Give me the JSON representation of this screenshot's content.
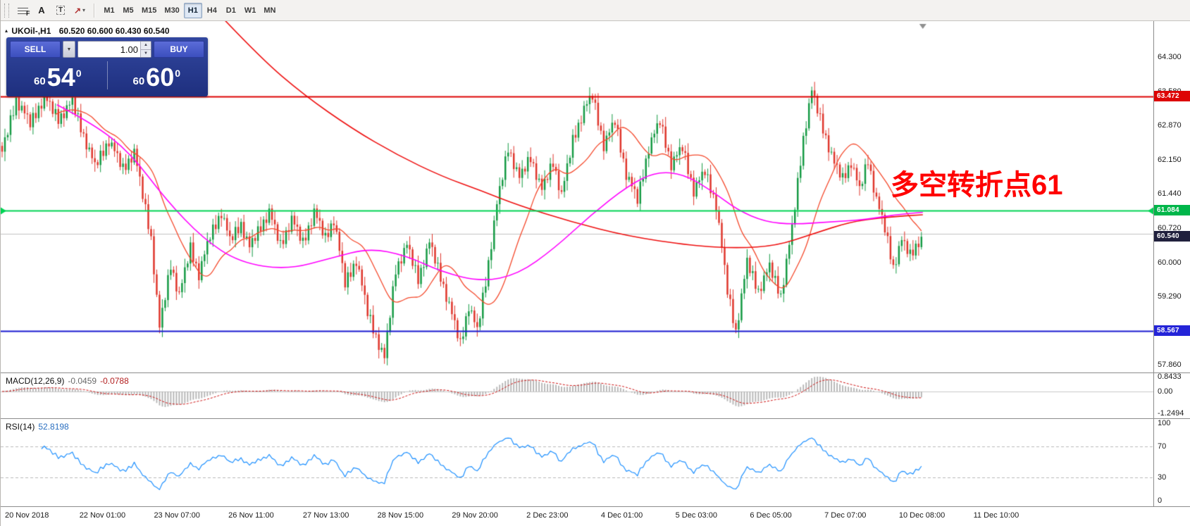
{
  "toolbar": {
    "tools": [
      {
        "name": "fibonacci-tool",
        "glyph": "F"
      },
      {
        "name": "text-tool",
        "glyph": "A"
      },
      {
        "name": "label-tool",
        "glyph": "T"
      },
      {
        "name": "arrows-tool",
        "glyph": "↗",
        "dropdown": "▾"
      }
    ],
    "timeframes": [
      "M1",
      "M5",
      "M15",
      "M30",
      "H1",
      "H4",
      "D1",
      "W1",
      "MN"
    ],
    "active_timeframe": "H1"
  },
  "chart": {
    "symbol": "UKOil-,H1",
    "ohlc": "60.520 60.600 60.430 60.540",
    "shift_marker": "▼"
  },
  "trade_panel": {
    "sell_label": "SELL",
    "buy_label": "BUY",
    "volume": "1.00",
    "dropdown_glyph": "▼",
    "spinner_up": "▲",
    "spinner_down": "▼",
    "sell_price": {
      "prefix": "60",
      "big": "54",
      "sup": "0"
    },
    "buy_price": {
      "prefix": "60",
      "big": "60",
      "sup": "0"
    }
  },
  "indicators": {
    "macd": {
      "name": "MACD(12,26,9)",
      "value_main": "-0.0459",
      "value_signal": "-0.0788"
    },
    "rsi": {
      "name": "RSI(14)",
      "value": "52.8198"
    }
  },
  "chart_data": {
    "type": "candlestick",
    "symbol": "UKOil-",
    "timeframe": "H1",
    "price_max": 65.05,
    "price_min": 57.7,
    "bars": 328,
    "bars_width_frac": 0.8,
    "label_first_bar": 4,
    "label_bar_step": 26.5,
    "up_color": "#149a43",
    "down_color": "#df352b",
    "x_labels": [
      "20 Nov 2018",
      "22 Nov 01:00",
      "23 Nov 07:00",
      "26 Nov 11:00",
      "27 Nov 13:00",
      "28 Nov 15:00",
      "29 Nov 20:00",
      "2 Dec 23:00",
      "4 Dec 01:00",
      "5 Dec 03:00",
      "6 Dec 05:00",
      "7 Dec 07:00",
      "10 Dec 08:00",
      "11 Dec 10:00"
    ],
    "y_ticks": [
      "64.300",
      "63.580",
      "62.870",
      "62.150",
      "61.440",
      "60.720",
      "60.000",
      "59.290",
      "58.570",
      "57.860"
    ],
    "path_anchors": [
      [
        0,
        62.3
      ],
      [
        5,
        63.4
      ],
      [
        10,
        62.9
      ],
      [
        15,
        63.45
      ],
      [
        20,
        63.0
      ],
      [
        25,
        63.35
      ],
      [
        29,
        62.65
      ],
      [
        33,
        62.0
      ],
      [
        38,
        62.55
      ],
      [
        43,
        61.95
      ],
      [
        47,
        62.3
      ],
      [
        50,
        61.4
      ],
      [
        53,
        60.5
      ],
      [
        56,
        58.62
      ],
      [
        60,
        59.95
      ],
      [
        63,
        59.3
      ],
      [
        67,
        60.3
      ],
      [
        70,
        59.75
      ],
      [
        74,
        60.55
      ],
      [
        78,
        61.05
      ],
      [
        81,
        60.45
      ],
      [
        85,
        60.8
      ],
      [
        88,
        60.3
      ],
      [
        92,
        60.75
      ],
      [
        95,
        61.05
      ],
      [
        99,
        60.35
      ],
      [
        103,
        60.9
      ],
      [
        107,
        60.4
      ],
      [
        111,
        61.05
      ],
      [
        115,
        60.5
      ],
      [
        118,
        60.9
      ],
      [
        122,
        59.55
      ],
      [
        126,
        60.05
      ],
      [
        130,
        58.95
      ],
      [
        133,
        58.45
      ],
      [
        136,
        57.98
      ],
      [
        140,
        59.85
      ],
      [
        144,
        60.35
      ],
      [
        148,
        59.65
      ],
      [
        152,
        60.4
      ],
      [
        156,
        59.7
      ],
      [
        160,
        58.9
      ],
      [
        163,
        58.28
      ],
      [
        166,
        59.1
      ],
      [
        169,
        58.55
      ],
      [
        172,
        59.6
      ],
      [
        176,
        61.2
      ],
      [
        180,
        62.4
      ],
      [
        184,
        61.75
      ],
      [
        188,
        62.2
      ],
      [
        192,
        61.5
      ],
      [
        196,
        62.1
      ],
      [
        199,
        61.4
      ],
      [
        203,
        62.55
      ],
      [
        207,
        63.2
      ],
      [
        210,
        63.48
      ],
      [
        214,
        62.45
      ],
      [
        218,
        62.95
      ],
      [
        222,
        61.85
      ],
      [
        226,
        61.3
      ],
      [
        230,
        62.4
      ],
      [
        234,
        62.95
      ],
      [
        238,
        62.05
      ],
      [
        242,
        62.4
      ],
      [
        246,
        61.5
      ],
      [
        250,
        61.9
      ],
      [
        254,
        61.2
      ],
      [
        258,
        59.4
      ],
      [
        261,
        58.55
      ],
      [
        265,
        60.0
      ],
      [
        269,
        59.4
      ],
      [
        273,
        59.9
      ],
      [
        277,
        59.3
      ],
      [
        281,
        60.7
      ],
      [
        285,
        62.6
      ],
      [
        288,
        63.58
      ],
      [
        292,
        62.8
      ],
      [
        296,
        62.05
      ],
      [
        299,
        61.75
      ],
      [
        302,
        62.1
      ],
      [
        305,
        61.5
      ],
      [
        308,
        62.15
      ],
      [
        311,
        61.3
      ],
      [
        314,
        60.7
      ],
      [
        317,
        59.9
      ],
      [
        320,
        60.45
      ],
      [
        323,
        60.15
      ],
      [
        327,
        60.54
      ]
    ],
    "jitter": [
      0.02,
      0.1,
      -0.07,
      0.12,
      -0.1,
      0.05,
      -0.12,
      0.08
    ],
    "wicks": [
      0.08,
      0.18,
      0.05,
      0.12,
      0.2,
      0.07,
      0.15,
      0.1
    ],
    "ma_fast": {
      "period": 20,
      "color": "#f4492c"
    },
    "ma_slow": {
      "color": "#ee1010",
      "points": [
        [
          76,
          65.3
        ],
        [
          92,
          64.3
        ],
        [
          108,
          63.5
        ],
        [
          125,
          62.8
        ],
        [
          141,
          62.25
        ],
        [
          157,
          61.8
        ],
        [
          171,
          61.5
        ],
        [
          184,
          61.2
        ],
        [
          203,
          60.85
        ],
        [
          223,
          60.55
        ],
        [
          246,
          60.35
        ],
        [
          262,
          60.3
        ],
        [
          276,
          60.35
        ],
        [
          289,
          60.6
        ],
        [
          302,
          60.85
        ],
        [
          315,
          60.95
        ],
        [
          328,
          61.0
        ]
      ]
    },
    "ma_mid": {
      "color": "#ff00ff",
      "points": [
        [
          20,
          63.3
        ],
        [
          33,
          62.9
        ],
        [
          46,
          62.3
        ],
        [
          59,
          61.3
        ],
        [
          72,
          60.5
        ],
        [
          85,
          60.0
        ],
        [
          102,
          59.85
        ],
        [
          118,
          60.1
        ],
        [
          131,
          60.3
        ],
        [
          144,
          60.15
        ],
        [
          157,
          59.8
        ],
        [
          171,
          59.6
        ],
        [
          184,
          59.75
        ],
        [
          197,
          60.3
        ],
        [
          210,
          61.0
        ],
        [
          223,
          61.6
        ],
        [
          233,
          61.9
        ],
        [
          243,
          61.85
        ],
        [
          253,
          61.5
        ],
        [
          262,
          61.1
        ],
        [
          272,
          60.85
        ],
        [
          282,
          60.8
        ],
        [
          295,
          60.85
        ],
        [
          308,
          60.9
        ],
        [
          318,
          61.0
        ],
        [
          328,
          61.05
        ]
      ]
    },
    "hlines": [
      {
        "value": 63.472,
        "color": "#dd0404",
        "tag": "63.472",
        "tag_bg": "#dd0404",
        "handles": false
      },
      {
        "value": 61.084,
        "color": "#00d455",
        "tag": "61.084",
        "tag_bg": "#00b64a",
        "handles": true
      },
      {
        "value": 58.567,
        "color": "#1818cf",
        "tag": "58.567",
        "tag_bg": "#2424d8",
        "handles": false
      }
    ],
    "ask_line": {
      "value": 60.6,
      "color": "#c0c0c0"
    },
    "bid": {
      "value": 60.54,
      "tag": "60.540",
      "tag_bg": "#20203d"
    },
    "annotation": {
      "text": "多空转折点61",
      "color": "#ff0000"
    },
    "macd": {
      "fast": 12,
      "slow": 26,
      "signal_period": 9,
      "range_max": 0.8433,
      "range_min": -1.2494,
      "ticks": [
        "0.8433",
        "0.00",
        "-1.2494"
      ],
      "hist_color": "#b2b2b2",
      "signal_color": "#cc1010",
      "zero_color": "#c8c8c8"
    },
    "rsi": {
      "period": 14,
      "range": [
        0,
        100
      ],
      "ticks": [
        "100",
        "70",
        "30",
        "0"
      ],
      "levels": [
        70,
        30
      ],
      "color": "#1e90ff",
      "level_color": "#b8b8b8"
    }
  }
}
